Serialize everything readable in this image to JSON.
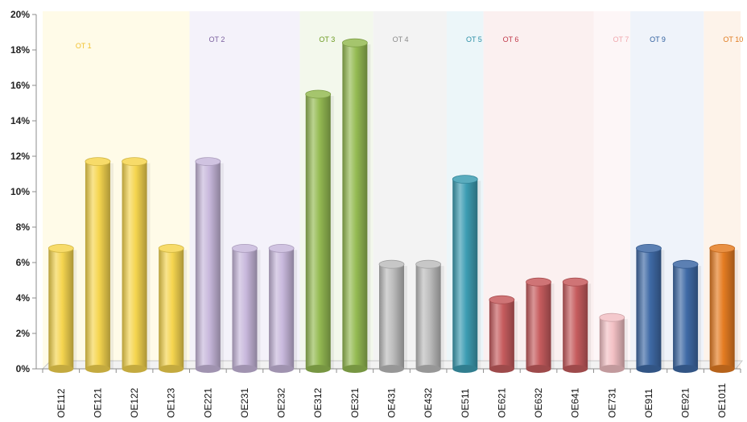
{
  "chart_data": {
    "type": "bar",
    "categories": [
      "OE112",
      "OE121",
      "OE122",
      "OE123",
      "OE221",
      "OE231",
      "OE232",
      "OE312",
      "OE321",
      "OE431",
      "OE432",
      "OE511",
      "OE621",
      "OE632",
      "OE641",
      "OE731",
      "OE911",
      "OE921",
      "OE1011"
    ],
    "values": [
      0.068,
      0.117,
      0.117,
      0.068,
      0.117,
      0.068,
      0.068,
      0.155,
      0.184,
      0.059,
      0.059,
      0.107,
      0.039,
      0.049,
      0.049,
      0.029,
      0.068,
      0.059,
      0.068
    ],
    "ylim": [
      0,
      0.2
    ],
    "yticks": [
      "0%",
      "2%",
      "4%",
      "6%",
      "8%",
      "10%",
      "12%",
      "14%",
      "16%",
      "18%",
      "20%"
    ],
    "groups": [
      {
        "label": "OT 1",
        "start": 0,
        "end": 3,
        "color": "#f2c12e",
        "band": "#fffbe8"
      },
      {
        "label": "OT 2",
        "start": 4,
        "end": 6,
        "color": "#7a5f9e",
        "band": "#f4f2fa"
      },
      {
        "label": "OT 3",
        "start": 7,
        "end": 8,
        "color": "#6b9a1f",
        "band": "#f3f8ec"
      },
      {
        "label": "OT 4",
        "start": 9,
        "end": 10,
        "color": "#8a8a8a",
        "band": "#f3f3f3"
      },
      {
        "label": "OT 5",
        "start": 11,
        "end": 11,
        "color": "#2b8fa6",
        "band": "#ecf6f9"
      },
      {
        "label": "OT 6",
        "start": 12,
        "end": 14,
        "color": "#c0394a",
        "band": "#fbf0f0"
      },
      {
        "label": "OT 7",
        "start": 15,
        "end": 15,
        "color": "#f0a6ad",
        "band": "#fdf6f7"
      },
      {
        "label": "OT 9",
        "start": 16,
        "end": 17,
        "color": "#2f5f9e",
        "band": "#eff3fa"
      },
      {
        "label": "OT 10",
        "start": 18,
        "end": 18,
        "color": "#e07a1e",
        "band": "#fdf3ea"
      }
    ],
    "bar_colors": [
      "#f5d54f",
      "#f5d54f",
      "#f5d54f",
      "#f5d54f",
      "#c8b8dc",
      "#c8b8dc",
      "#c8b8dc",
      "#95bb53",
      "#95bb53",
      "#bdbdbd",
      "#bdbdbd",
      "#3d9db3",
      "#c65c5e",
      "#c65c5e",
      "#c65c5e",
      "#f2c0c4",
      "#3f6aa6",
      "#3f6aa6",
      "#e57c22"
    ],
    "grid": false,
    "legend": "none"
  }
}
